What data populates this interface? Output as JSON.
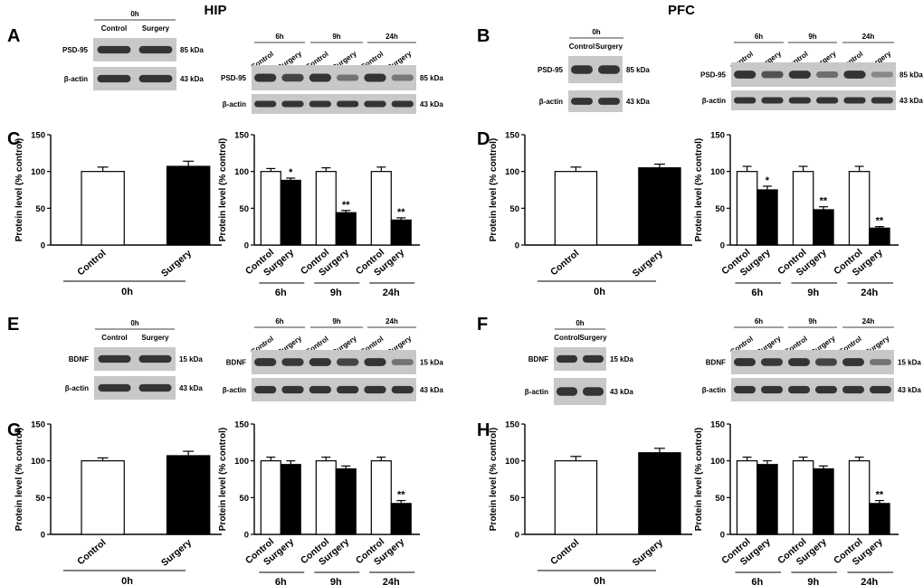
{
  "titles": {
    "left": "HIP",
    "right": "PFC"
  },
  "western_blots": [
    {
      "panel": "A",
      "side": "left",
      "layout": "0h",
      "rows": [
        {
          "label": "PSD-95",
          "kda": "85 kDa",
          "loss": [
            0,
            0
          ]
        },
        {
          "label": "β-actin",
          "kda": "43 kDa",
          "loss": [
            0,
            0
          ]
        }
      ]
    },
    {
      "panel": "A",
      "side": "left",
      "layout": "time",
      "rows": [
        {
          "label": "PSD-95",
          "kda": "85 kDa",
          "loss": [
            0,
            0.15,
            0,
            0.6,
            0,
            0.65
          ]
        },
        {
          "label": "β-actin",
          "kda": "43 kDa",
          "loss": [
            0,
            0,
            0,
            0,
            0,
            0
          ]
        }
      ]
    },
    {
      "panel": "B",
      "side": "right",
      "layout": "0h",
      "rows": [
        {
          "label": "PSD-95",
          "kda": "85 kDa",
          "loss": [
            0,
            0
          ]
        },
        {
          "label": "β-actin",
          "kda": "43 kDa",
          "loss": [
            0,
            0
          ]
        }
      ]
    },
    {
      "panel": "B",
      "side": "right",
      "layout": "time",
      "rows": [
        {
          "label": "PSD-95",
          "kda": "85 kDa",
          "loss": [
            0,
            0.3,
            0,
            0.55,
            0,
            0.8
          ]
        },
        {
          "label": "β-actin",
          "kda": "43 kDa",
          "loss": [
            0,
            0,
            0,
            0,
            0,
            0
          ]
        }
      ]
    },
    {
      "panel": "E",
      "side": "left",
      "layout": "0h",
      "rows": [
        {
          "label": "BDNF",
          "kda": "15 kDa",
          "loss": [
            0,
            0
          ]
        },
        {
          "label": "β-actin",
          "kda": "43 kDa",
          "loss": [
            0,
            0
          ]
        }
      ]
    },
    {
      "panel": "E",
      "side": "left",
      "layout": "time",
      "rows": [
        {
          "label": "BDNF",
          "kda": "15 kDa",
          "loss": [
            0,
            0.05,
            0,
            0.15,
            0,
            0.6
          ]
        },
        {
          "label": "β-actin",
          "kda": "43 kDa",
          "loss": [
            0,
            0,
            0,
            0,
            0,
            0
          ]
        }
      ]
    },
    {
      "panel": "F",
      "side": "right",
      "layout": "0h",
      "rows": [
        {
          "label": "BDNF",
          "kda": "15 kDa",
          "loss": [
            0,
            0
          ]
        },
        {
          "label": "β-actin",
          "kda": "43 kDa",
          "loss": [
            0,
            0
          ]
        }
      ]
    },
    {
      "panel": "F",
      "side": "right",
      "layout": "time",
      "rows": [
        {
          "label": "BDNF",
          "kda": "15 kDa",
          "loss": [
            0,
            0.05,
            0,
            0.15,
            0,
            0.6
          ]
        },
        {
          "label": "β-actin",
          "kda": "43 kDa",
          "loss": [
            0,
            0,
            0,
            0,
            0,
            0
          ]
        }
      ]
    }
  ],
  "blot_text": {
    "time_labels": [
      "6h",
      "9h",
      "24h"
    ],
    "zero_label": "0h",
    "control": "Control",
    "surgery": "Surgery"
  },
  "chart_data": [
    {
      "panel": "C",
      "type": "bar",
      "layout": "0h",
      "ylabel": "Protein level (% control)",
      "ylim": [
        0,
        150
      ],
      "yticks": [
        0,
        50,
        100,
        150
      ],
      "categories": [
        "Control",
        "Surgery"
      ],
      "values": [
        100,
        107
      ],
      "errors": [
        6,
        7
      ],
      "fills": [
        "#ffffff",
        "#000000"
      ],
      "group_label": "0h"
    },
    {
      "panel": "C",
      "type": "bar",
      "layout": "time",
      "ylabel": "Protein level (% control)",
      "ylim": [
        0,
        150
      ],
      "yticks": [
        0,
        50,
        100,
        150
      ],
      "groups": [
        "6h",
        "9h",
        "24h"
      ],
      "categories": [
        "Control",
        "Surgery"
      ],
      "values": [
        [
          100,
          88
        ],
        [
          100,
          44
        ],
        [
          100,
          34
        ]
      ],
      "errors": [
        [
          4,
          3
        ],
        [
          5,
          3
        ],
        [
          6,
          3
        ]
      ],
      "stars": [
        [
          "",
          "*"
        ],
        [
          "",
          "**"
        ],
        [
          "",
          "**"
        ]
      ],
      "fills": [
        "#ffffff",
        "#000000"
      ]
    },
    {
      "panel": "D",
      "type": "bar",
      "layout": "0h",
      "ylabel": "Protein level (% control)",
      "ylim": [
        0,
        150
      ],
      "yticks": [
        0,
        50,
        100,
        150
      ],
      "categories": [
        "Control",
        "Surgery"
      ],
      "values": [
        100,
        105
      ],
      "errors": [
        6,
        5
      ],
      "fills": [
        "#ffffff",
        "#000000"
      ],
      "group_label": "0h"
    },
    {
      "panel": "D",
      "type": "bar",
      "layout": "time",
      "ylabel": "Protein level (% control)",
      "ylim": [
        0,
        150
      ],
      "yticks": [
        0,
        50,
        100,
        150
      ],
      "groups": [
        "6h",
        "9h",
        "24h"
      ],
      "categories": [
        "Control",
        "Surgery"
      ],
      "values": [
        [
          100,
          75
        ],
        [
          100,
          48
        ],
        [
          100,
          23
        ]
      ],
      "errors": [
        [
          7,
          5
        ],
        [
          7,
          4
        ],
        [
          7,
          2
        ]
      ],
      "stars": [
        [
          "",
          "*"
        ],
        [
          "",
          "**"
        ],
        [
          "",
          "**"
        ]
      ],
      "fills": [
        "#ffffff",
        "#000000"
      ]
    },
    {
      "panel": "G",
      "type": "bar",
      "layout": "0h",
      "ylabel": "Protein level (% control)",
      "ylim": [
        0,
        150
      ],
      "yticks": [
        0,
        50,
        100,
        150
      ],
      "categories": [
        "Control",
        "Surgery"
      ],
      "values": [
        100,
        107
      ],
      "errors": [
        4,
        6
      ],
      "fills": [
        "#ffffff",
        "#000000"
      ],
      "group_label": "0h"
    },
    {
      "panel": "G",
      "type": "bar",
      "layout": "time",
      "ylabel": "Protein level (% control)",
      "ylim": [
        0,
        150
      ],
      "yticks": [
        0,
        50,
        100,
        150
      ],
      "groups": [
        "6h",
        "9h",
        "24h"
      ],
      "categories": [
        "Control",
        "Surgery"
      ],
      "values": [
        [
          100,
          95
        ],
        [
          100,
          89
        ],
        [
          100,
          42
        ]
      ],
      "errors": [
        [
          5,
          5
        ],
        [
          5,
          4
        ],
        [
          5,
          4
        ]
      ],
      "stars": [
        [
          "",
          ""
        ],
        [
          "",
          ""
        ],
        [
          "",
          "**"
        ]
      ],
      "fills": [
        "#ffffff",
        "#000000"
      ]
    },
    {
      "panel": "H",
      "type": "bar",
      "layout": "0h",
      "ylabel": "Protein level (% control)",
      "ylim": [
        0,
        150
      ],
      "yticks": [
        0,
        50,
        100,
        150
      ],
      "categories": [
        "Control",
        "Surgery"
      ],
      "values": [
        100,
        111
      ],
      "errors": [
        6,
        6
      ],
      "fills": [
        "#ffffff",
        "#000000"
      ],
      "group_label": "0h"
    },
    {
      "panel": "H",
      "type": "bar",
      "layout": "time",
      "ylabel": "Protein level (% control)",
      "ylim": [
        0,
        150
      ],
      "yticks": [
        0,
        50,
        100,
        150
      ],
      "groups": [
        "6h",
        "9h",
        "24h"
      ],
      "categories": [
        "Control",
        "Surgery"
      ],
      "values": [
        [
          100,
          95
        ],
        [
          100,
          89
        ],
        [
          100,
          42
        ]
      ],
      "errors": [
        [
          5,
          5
        ],
        [
          5,
          4
        ],
        [
          5,
          4
        ]
      ],
      "stars": [
        [
          "",
          ""
        ],
        [
          "",
          ""
        ],
        [
          "",
          "**"
        ]
      ],
      "fills": [
        "#ffffff",
        "#000000"
      ]
    }
  ]
}
